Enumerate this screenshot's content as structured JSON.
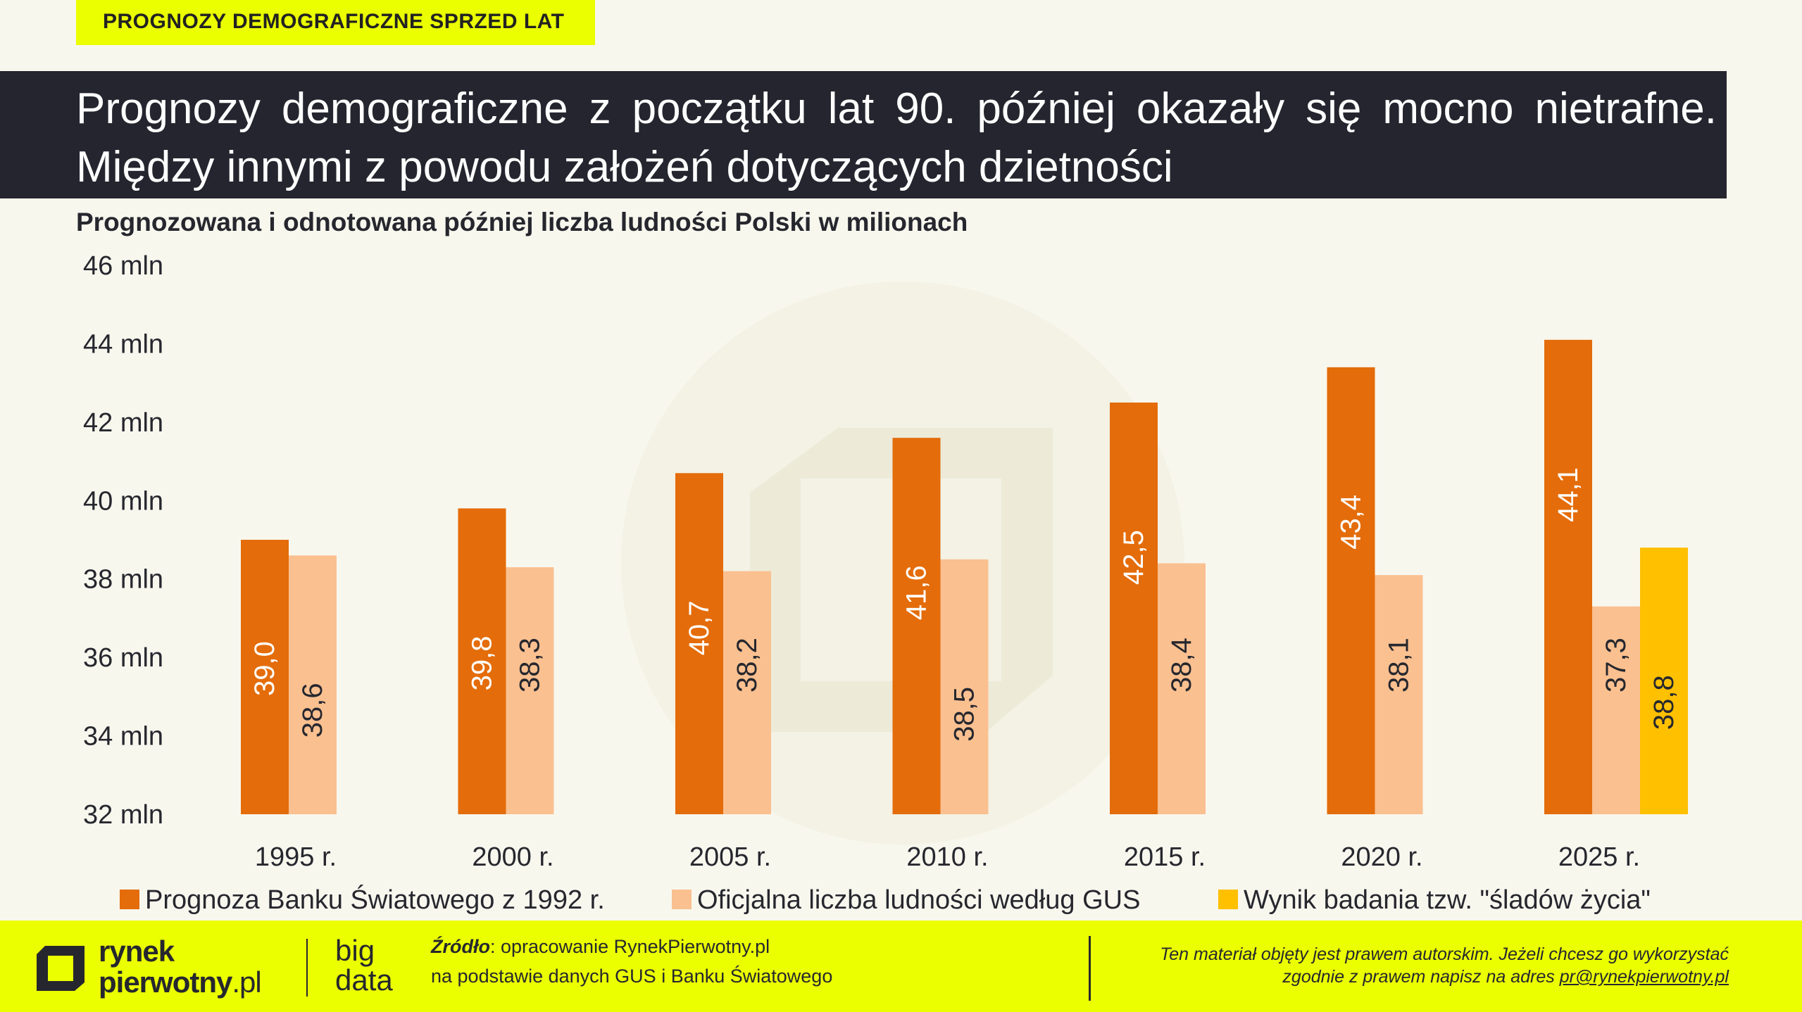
{
  "tag": "PROGNOZY DEMOGRAFICZNE SPRZED LAT",
  "headline": "Prognozy demograficzne z początku lat 90. później okazały się mocno nietrafne. Między innymi z powodu założeń dotyczących dzietności",
  "subtitle": "Prognozowana i odnotowana później liczba ludności Polski w milionach",
  "chart_data": {
    "type": "bar",
    "categories": [
      "1995 r.",
      "2000 r.",
      "2005 r.",
      "2010 r.",
      "2015 r.",
      "2020 r.",
      "2025 r."
    ],
    "y_ticks": [
      "32 mln",
      "34 mln",
      "36 mln",
      "38 mln",
      "40 mln",
      "42 mln",
      "44 mln",
      "46 mln"
    ],
    "ylim": [
      32,
      46
    ],
    "grid": false,
    "legend_position": "bottom",
    "series": [
      {
        "name": "Prognoza Banku Światowego z 1992 r.",
        "color": "#e46c0a",
        "label_color": "#ffffff",
        "values": [
          39.0,
          39.8,
          40.7,
          41.6,
          42.5,
          43.4,
          44.1
        ],
        "labels": [
          "39,0",
          "39,8",
          "40,7",
          "41,6",
          "42,5",
          "43,4",
          "44,1"
        ]
      },
      {
        "name": "Oficjalna liczba ludności według GUS",
        "color": "#fac090",
        "label_color": "#26272e",
        "values": [
          38.6,
          38.3,
          38.2,
          38.5,
          38.4,
          38.1,
          37.3
        ],
        "labels": [
          "38,6",
          "38,3",
          "38,2",
          "38,5",
          "38,4",
          "38,1",
          "37,3"
        ]
      },
      {
        "name": "Wynik badania tzw. \"śladów życia\"",
        "color": "#ffc000",
        "label_color": "#26272e",
        "values": [
          null,
          null,
          null,
          null,
          null,
          null,
          38.8
        ],
        "labels": [
          null,
          null,
          null,
          null,
          null,
          null,
          "38,8"
        ]
      }
    ]
  },
  "footer": {
    "brand_line1": "rynek",
    "brand_line2": "pierwotny",
    "brand_suffix": ".pl",
    "bigdata_line1": "big",
    "bigdata_line2": "data",
    "source_label": "Źródło",
    "source_line1": ": opracowanie RynekPierwotny.pl",
    "source_line2": "na podstawie danych GUS i Banku Światowego",
    "copyright_line1": "Ten materiał objęty jest prawem autorskim. Jeżeli chcesz go wykorzystać",
    "copyright_line2": "zgodnie z prawem napisz na adres ",
    "copyright_email": "pr@rynekpierwotny.pl"
  }
}
